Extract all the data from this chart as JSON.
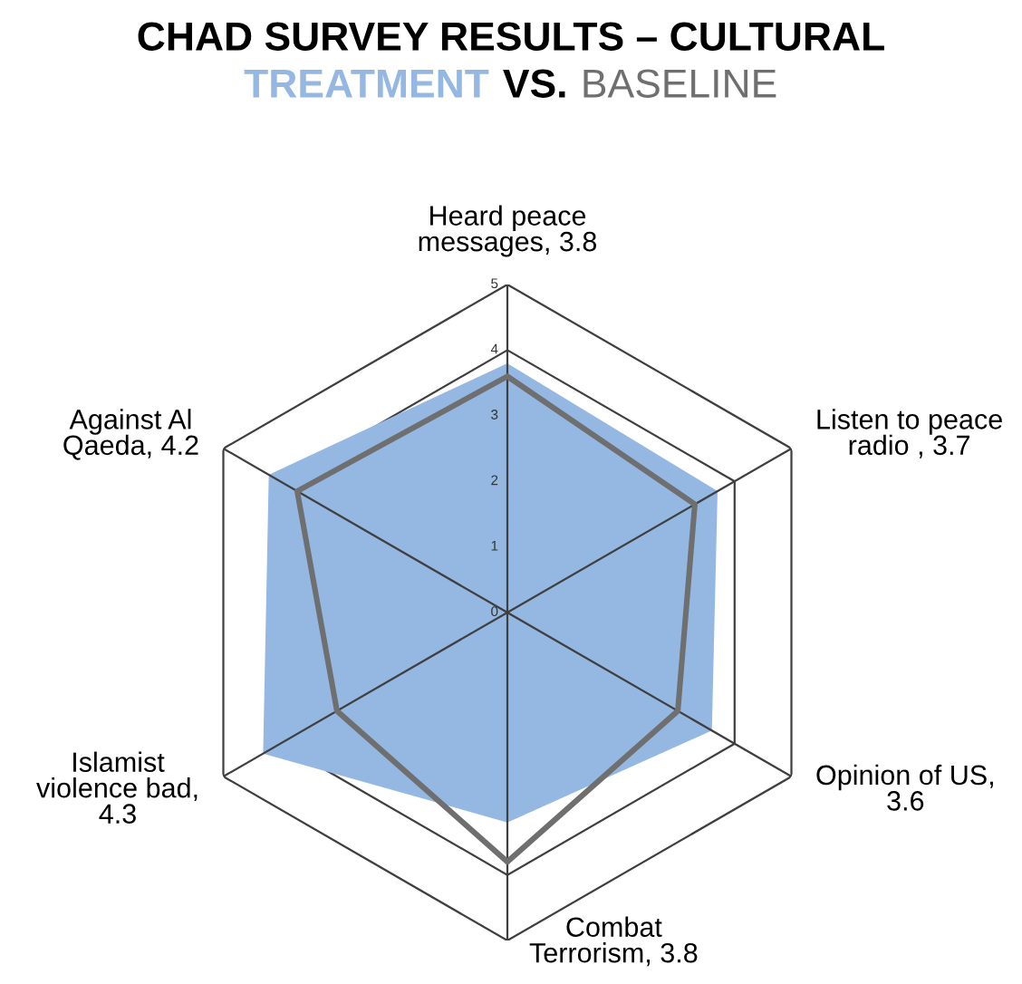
{
  "chart_data": {
    "type": "radar",
    "title": "CHAD SURVEY RESULTS – CULTURAL",
    "subtitle": "VS.",
    "categories": [
      "Heard peace messages, 3.8",
      "Listen to peace radio , 3.7",
      "Opinion of US, 3.6",
      "Combat Terrorism, 3.8",
      "Islamist violence bad, 4.3",
      "Against Al Qaeda, 4.2"
    ],
    "series": [
      {
        "name": "TREATMENT",
        "color": "#95b8e3",
        "values": [
          3.8,
          3.7,
          3.6,
          3.2,
          4.3,
          4.2
        ]
      },
      {
        "name": "BASELINE",
        "color": "#6f6f6f",
        "values": [
          3.6,
          3.3,
          3.0,
          3.8,
          3.0,
          3.7
        ]
      }
    ],
    "ylim": [
      0,
      5
    ],
    "yticks": [
      0,
      1,
      2,
      3,
      4,
      5
    ],
    "grid": true,
    "legend": "top"
  }
}
